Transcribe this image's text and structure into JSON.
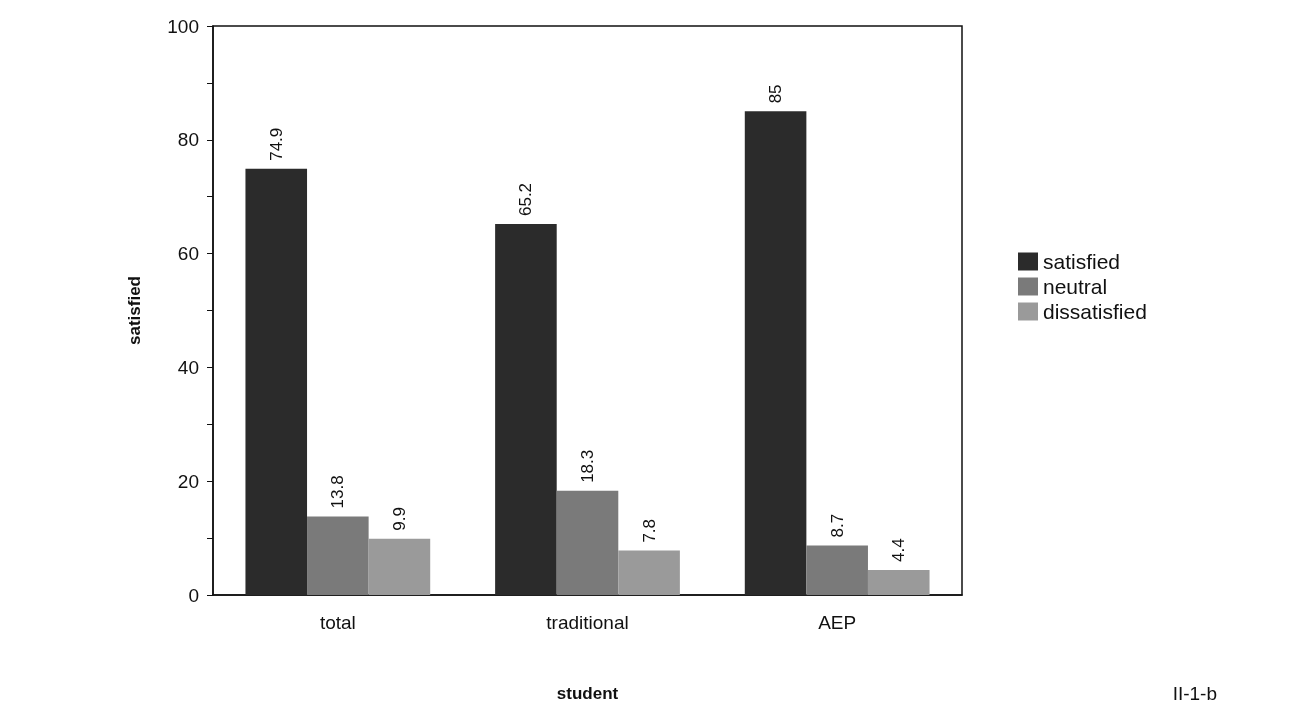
{
  "chart_data": {
    "type": "bar",
    "xlabel": "student",
    "ylabel": "satisfied",
    "categories": [
      "total",
      "traditional",
      "AEP"
    ],
    "series": [
      {
        "name": "satisfied",
        "color": "#2b2b2b",
        "values": [
          74.9,
          65.2,
          85
        ]
      },
      {
        "name": "neutral",
        "color": "#7a7a7a",
        "values": [
          13.8,
          18.3,
          8.7
        ]
      },
      {
        "name": "dissatisfied",
        "color": "#9a9a9a",
        "values": [
          9.9,
          7.8,
          4.4
        ]
      }
    ],
    "ylim": [
      0,
      100
    ],
    "yticks": [
      0,
      {
        "value": 10,
        "label": null
      },
      20,
      {
        "value": 30,
        "label": null
      },
      40,
      {
        "value": 50,
        "label": null
      },
      60,
      {
        "value": 70,
        "label": null
      },
      80,
      {
        "value": 90,
        "label": null
      },
      100
    ],
    "data_labels": true,
    "grid": false,
    "legend": "right",
    "annotations": [
      "II-1-b"
    ]
  }
}
